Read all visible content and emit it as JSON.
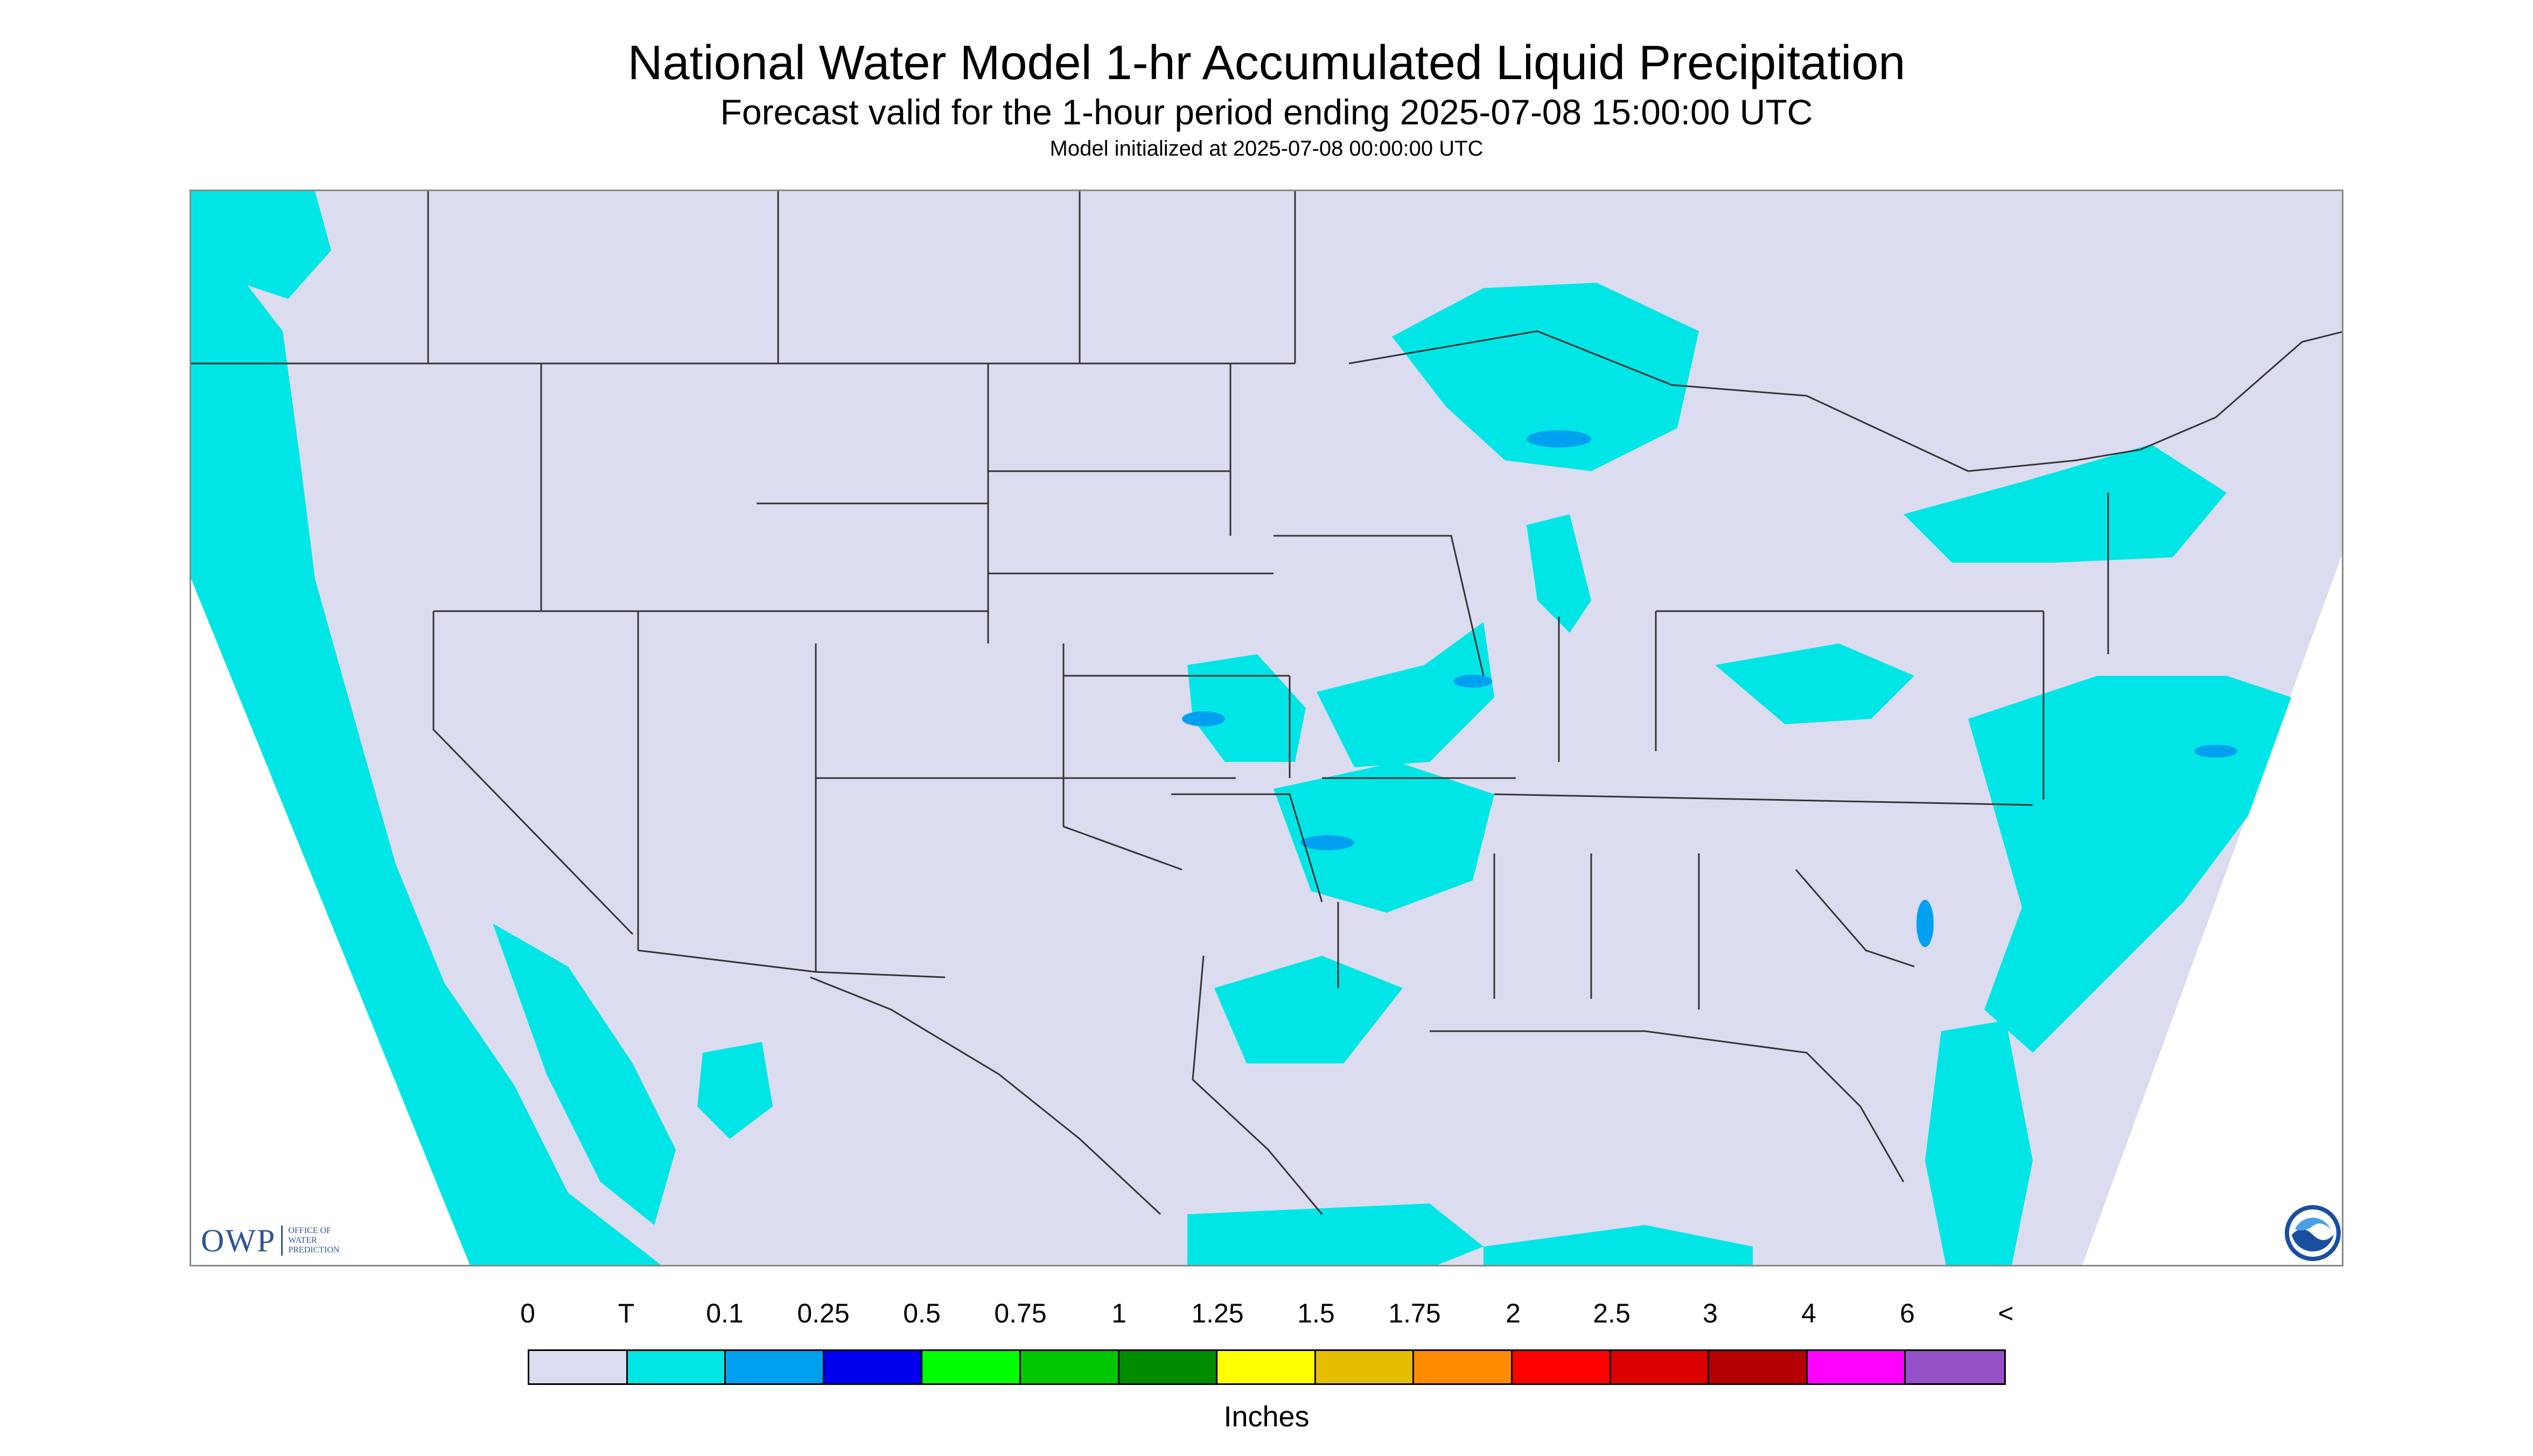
{
  "header": {
    "title": "National Water Model 1-hr Accumulated Liquid Precipitation",
    "subtitle": "Forecast valid for the 1-hour period ending 2025-07-08 15:00:00 UTC",
    "init": "Model initialized at 2025-07-08 00:00:00 UTC"
  },
  "map": {
    "domain_color": "#dcdcf0",
    "outside_color": "#ffffff",
    "border_color": "#333333"
  },
  "logos": {
    "owp": {
      "letters": "OWP",
      "text": "Office of Water Prediction"
    },
    "noaa": {
      "icon": "noaa-logo-icon"
    }
  },
  "legend": {
    "units": "Inches",
    "labels": [
      "0",
      "T",
      "0.1",
      "0.25",
      "0.5",
      "0.75",
      "1",
      "1.25",
      "1.5",
      "1.75",
      "2",
      "2.5",
      "3",
      "4",
      "6",
      "<"
    ],
    "colors": [
      "#dcdcf0",
      "#00e6e6",
      "#00a0f0",
      "#0000f0",
      "#00ff00",
      "#00c800",
      "#008c00",
      "#ffff00",
      "#e6be00",
      "#ff8c00",
      "#ff0000",
      "#dc0000",
      "#b40000",
      "#ff00ff",
      "#9650c8"
    ]
  }
}
